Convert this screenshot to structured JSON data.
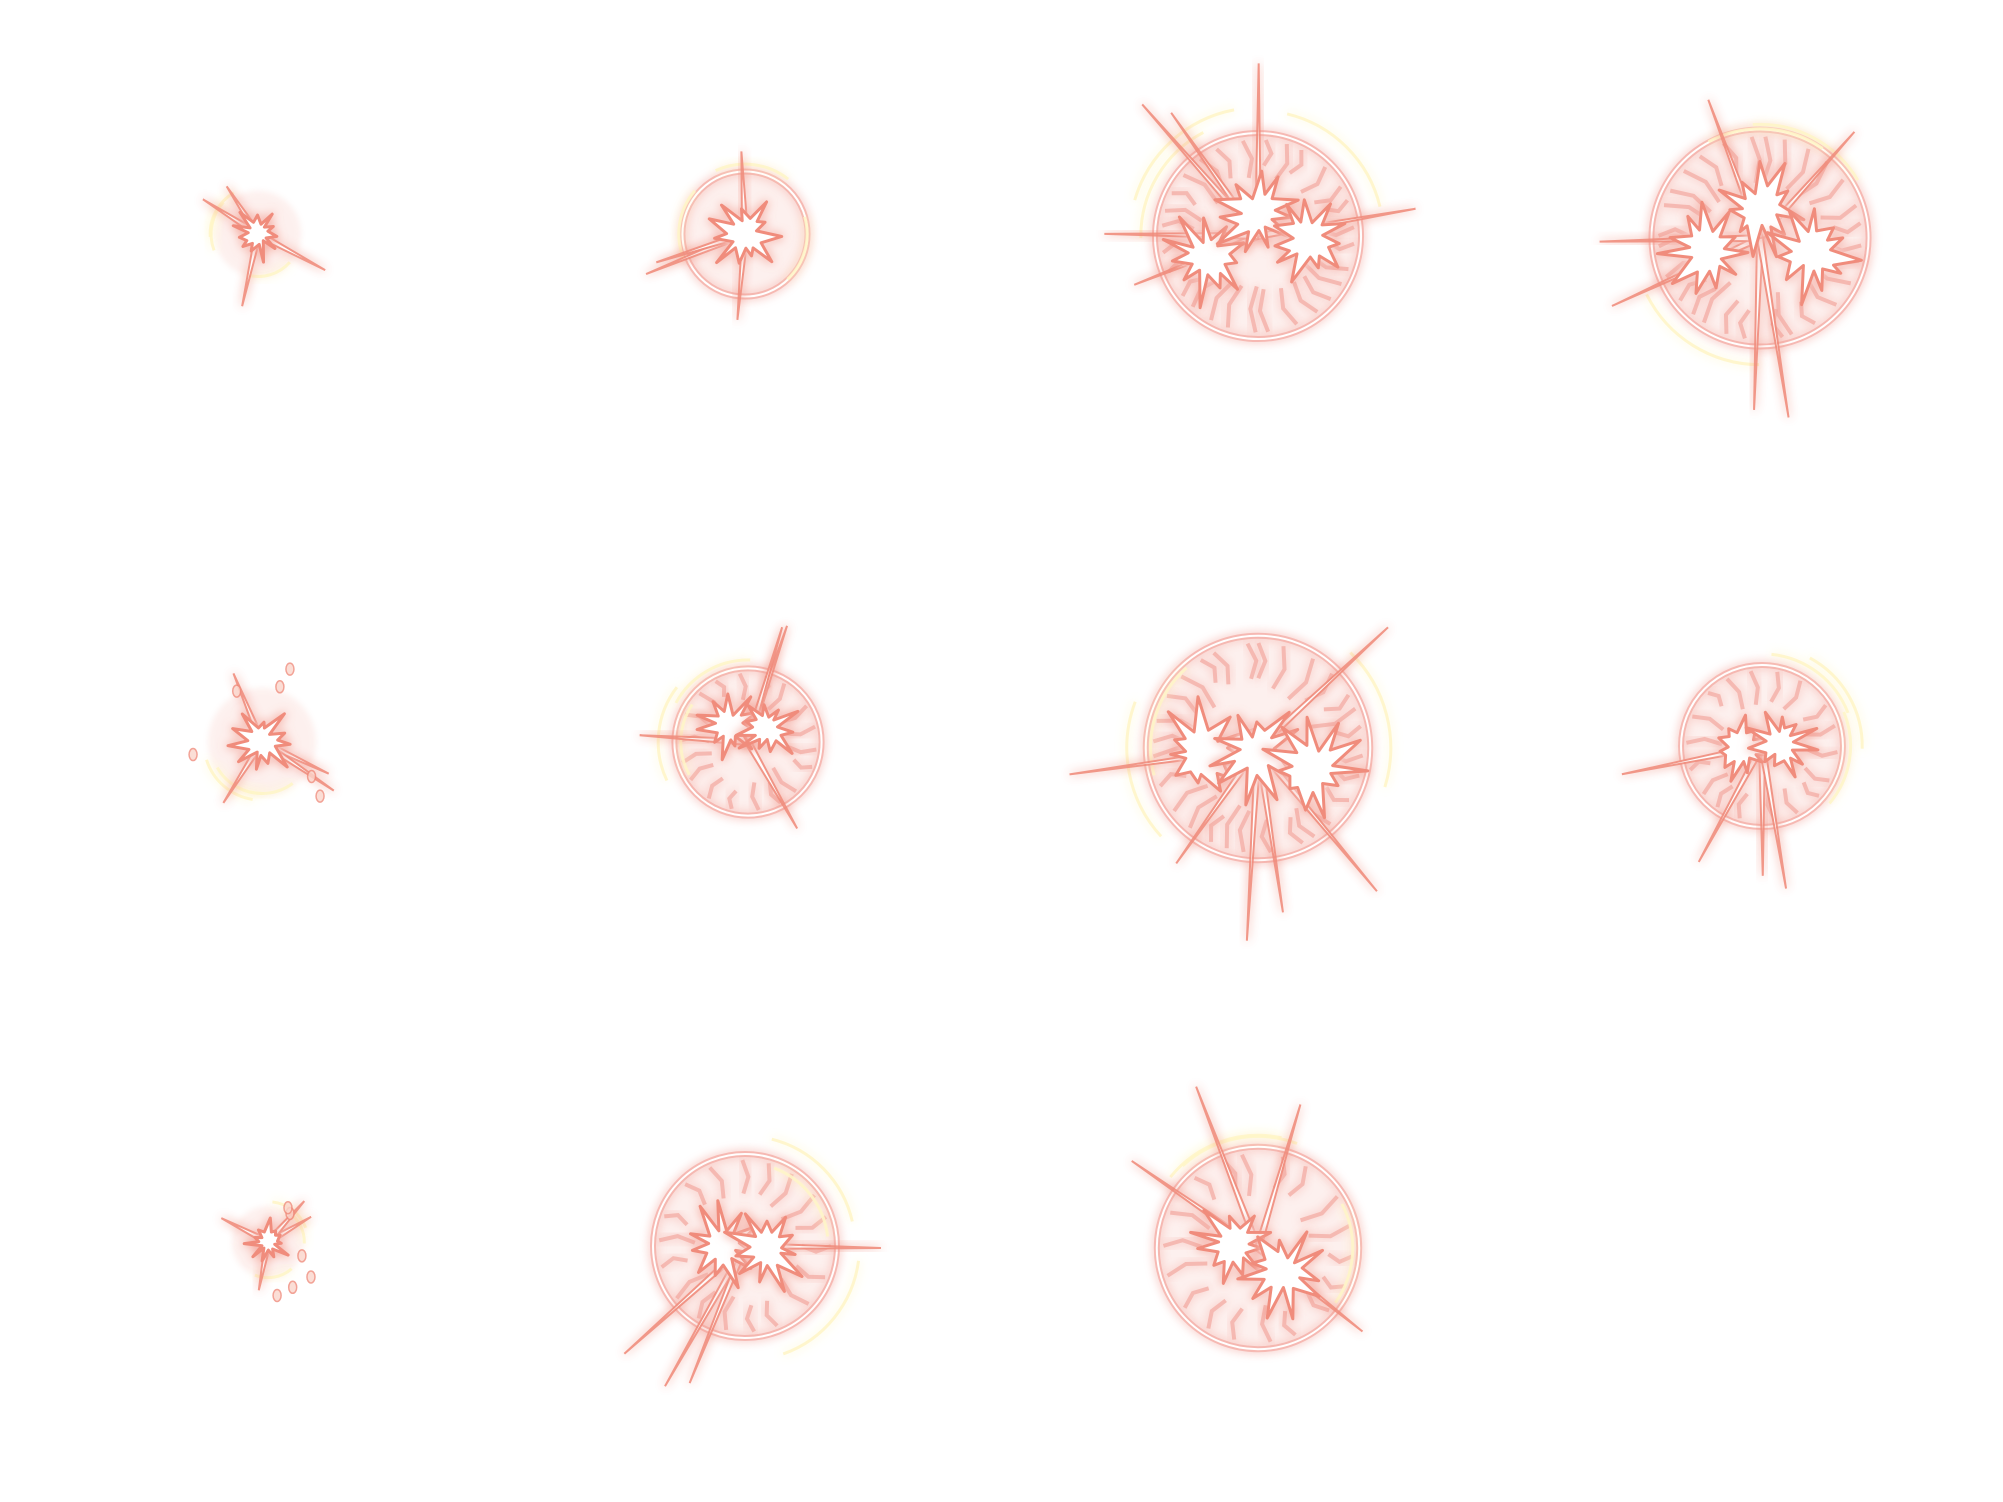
{
  "sheet": {
    "background": "#ffffff",
    "palette": {
      "outer_glow": "#f08c7c",
      "inner_stroke": "#fbd6cc",
      "core": "#ffffff",
      "spark": "#fff6c8",
      "ring": "#f3a39a"
    },
    "frames": [
      {
        "id": "frame-01",
        "kind": "spark-burst",
        "has_ring": false,
        "detail": "small"
      },
      {
        "id": "frame-02",
        "kind": "ringed-burst",
        "has_ring": true,
        "detail": "small"
      },
      {
        "id": "frame-03",
        "kind": "cracked-sphere",
        "has_ring": true,
        "detail": "large"
      },
      {
        "id": "frame-04",
        "kind": "cracked-sphere-flare",
        "has_ring": true,
        "detail": "large"
      },
      {
        "id": "frame-05",
        "kind": "splatter-burst",
        "has_ring": false,
        "detail": "small"
      },
      {
        "id": "frame-06",
        "kind": "ringed-burst",
        "has_ring": true,
        "detail": "medium"
      },
      {
        "id": "frame-07",
        "kind": "shattering-sphere",
        "has_ring": true,
        "detail": "large"
      },
      {
        "id": "frame-08",
        "kind": "fading-ring-burst",
        "has_ring": true,
        "detail": "medium"
      },
      {
        "id": "frame-09",
        "kind": "spark-burst",
        "has_ring": false,
        "detail": "tiny"
      },
      {
        "id": "frame-10",
        "kind": "cracked-sphere",
        "has_ring": true,
        "detail": "medium"
      },
      {
        "id": "frame-11",
        "kind": "shattering-sphere",
        "has_ring": true,
        "detail": "medium"
      }
    ]
  }
}
